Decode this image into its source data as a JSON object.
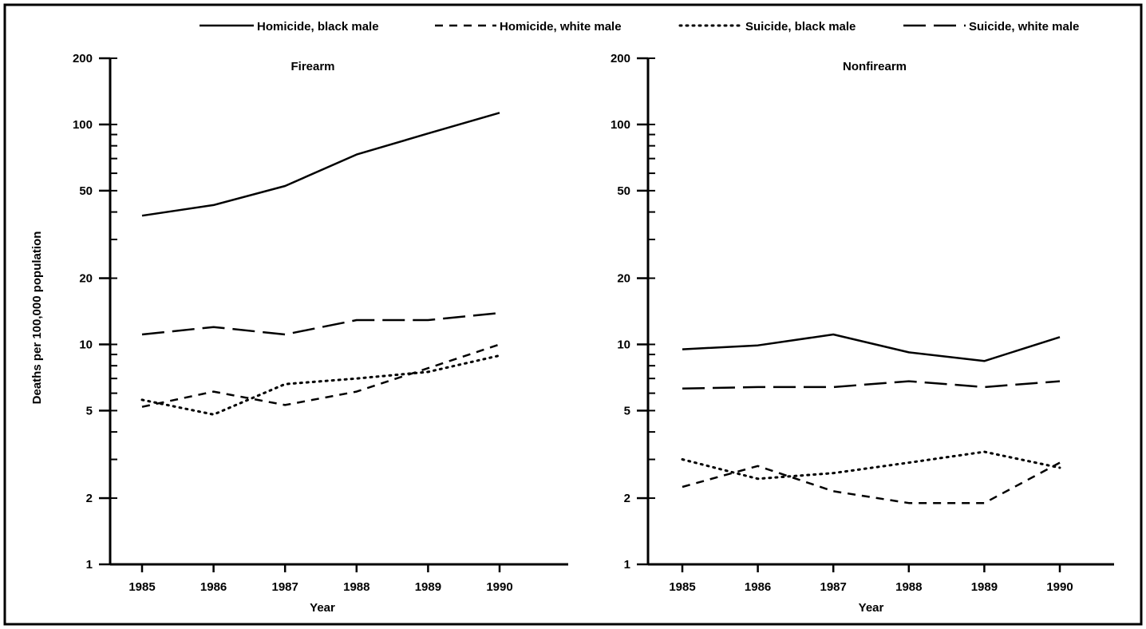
{
  "legend": [
    {
      "name": "Homicide, black male",
      "style": "solid"
    },
    {
      "name": "Homicide, white male",
      "style": "dashed"
    },
    {
      "name": "Suicide, black male",
      "style": "dotted"
    },
    {
      "name": "Suicide, white male",
      "style": "longdash"
    }
  ],
  "colors": {
    "line": "#000000",
    "background": "#ffffff"
  },
  "chart_data": [
    {
      "type": "line",
      "title": "Firearm",
      "xlabel": "Year",
      "ylabel": "Deaths per 100,000 population",
      "yscale": "log",
      "ylim": [
        1,
        200
      ],
      "yticks": [
        1,
        2,
        5,
        10,
        20,
        50,
        100,
        200
      ],
      "x": [
        1985,
        1986,
        1987,
        1988,
        1989,
        1990
      ],
      "series": [
        {
          "name": "Homicide, black male",
          "values": [
            38.5,
            43,
            52.5,
            73,
            91,
            113
          ]
        },
        {
          "name": "Homicide, white male",
          "values": [
            5.2,
            6.1,
            5.3,
            6.1,
            7.8,
            10.0
          ]
        },
        {
          "name": "Suicide, black male",
          "values": [
            5.6,
            4.8,
            6.6,
            7.0,
            7.5,
            8.9
          ]
        },
        {
          "name": "Suicide, white male",
          "values": [
            11.1,
            12.0,
            11.1,
            12.9,
            12.9,
            13.9
          ]
        }
      ]
    },
    {
      "type": "line",
      "title": "Nonfirearm",
      "xlabel": "Year",
      "ylabel": "",
      "yscale": "log",
      "ylim": [
        1,
        200
      ],
      "yticks": [
        1,
        2,
        5,
        10,
        20,
        50,
        100,
        200
      ],
      "x": [
        1985,
        1986,
        1987,
        1988,
        1989,
        1990
      ],
      "series": [
        {
          "name": "Homicide, black male",
          "values": [
            9.5,
            9.9,
            11.1,
            9.2,
            8.4,
            10.8
          ]
        },
        {
          "name": "Homicide, white male",
          "values": [
            2.25,
            2.8,
            2.15,
            1.9,
            1.9,
            2.9
          ]
        },
        {
          "name": "Suicide, black male",
          "values": [
            3.0,
            2.45,
            2.6,
            2.9,
            3.25,
            2.75
          ]
        },
        {
          "name": "Suicide, white male",
          "values": [
            6.3,
            6.4,
            6.4,
            6.8,
            6.4,
            6.8
          ]
        }
      ]
    }
  ]
}
